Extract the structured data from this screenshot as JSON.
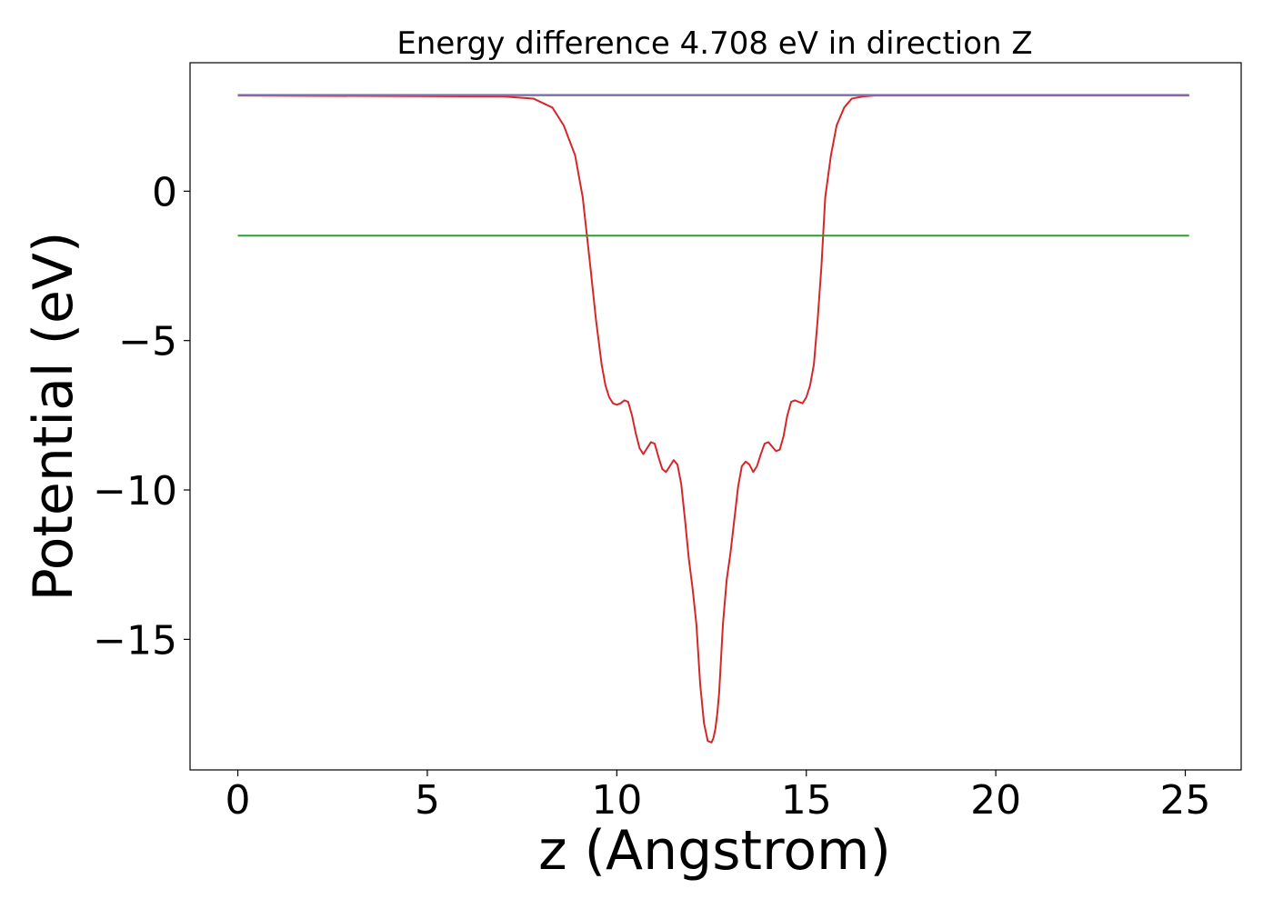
{
  "chart_data": {
    "type": "line",
    "title": "Energy difference 4.708 eV in direction Z",
    "xlabel": "z (Angstrom)",
    "ylabel": "Potential (eV)",
    "xlim": [
      -1.2607,
      26.4748
    ],
    "ylim": [
      -19.37,
      4.3
    ],
    "x_ticks": [
      0,
      5,
      10,
      15,
      20,
      25
    ],
    "x_tick_labels": [
      "0",
      "5",
      "10",
      "15",
      "20",
      "25"
    ],
    "y_ticks": [
      0,
      -5,
      -10,
      -15
    ],
    "y_tick_labels": [
      "0",
      "−5",
      "−10",
      "−15"
    ],
    "grid": false,
    "legend": "none",
    "series": [
      {
        "color": "#d62728",
        "x": [
          0,
          7.0,
          7.8,
          8.3,
          8.6,
          8.9,
          9.1,
          9.3,
          9.45,
          9.6,
          9.7,
          9.8,
          9.9,
          10.0,
          10.1,
          10.2,
          10.3,
          10.4,
          10.5,
          10.6,
          10.7,
          10.8,
          10.9,
          11.0,
          11.1,
          11.2,
          11.3,
          11.4,
          11.5,
          11.6,
          11.7,
          11.8,
          11.9,
          12.0,
          12.1,
          12.2,
          12.3,
          12.4,
          12.5,
          12.55,
          12.6,
          12.65,
          12.7,
          12.8,
          12.9,
          13.0,
          13.1,
          13.2,
          13.3,
          13.4,
          13.5,
          13.6,
          13.7,
          13.8,
          13.9,
          14.0,
          14.1,
          14.2,
          14.3,
          14.4,
          14.5,
          14.6,
          14.7,
          14.8,
          14.9,
          15.0,
          15.1,
          15.2,
          15.3,
          15.4,
          15.5,
          15.65,
          15.8,
          16.0,
          16.2,
          16.5,
          16.8,
          17.3,
          18.0,
          20.0,
          25.1
        ],
        "values": [
          3.2,
          3.17,
          3.1,
          2.8,
          2.2,
          1.2,
          -0.2,
          -2.5,
          -4.3,
          -5.8,
          -6.5,
          -6.9,
          -7.1,
          -7.15,
          -7.1,
          -7.0,
          -7.05,
          -7.5,
          -8.1,
          -8.6,
          -8.8,
          -8.6,
          -8.4,
          -8.45,
          -8.9,
          -9.3,
          -9.4,
          -9.2,
          -9.0,
          -9.15,
          -9.8,
          -11.0,
          -12.3,
          -13.3,
          -14.5,
          -16.5,
          -17.8,
          -18.4,
          -18.45,
          -18.3,
          -18.0,
          -17.5,
          -16.8,
          -14.5,
          -13.0,
          -12.1,
          -11.0,
          -9.9,
          -9.2,
          -9.05,
          -9.15,
          -9.4,
          -9.2,
          -8.8,
          -8.45,
          -8.4,
          -8.55,
          -8.7,
          -8.65,
          -8.2,
          -7.5,
          -7.05,
          -7.0,
          -7.05,
          -7.1,
          -6.9,
          -6.5,
          -5.8,
          -4.3,
          -2.5,
          -0.2,
          1.2,
          2.2,
          2.8,
          3.1,
          3.17,
          3.2,
          3.2,
          3.2,
          3.2,
          3.2
        ]
      },
      {
        "color": "#1f77b4",
        "x": [
          0,
          25.1
        ],
        "values": [
          3.22,
          3.22
        ]
      },
      {
        "color": "#2ca02c",
        "x": [
          0,
          25.1
        ],
        "values": [
          -1.49,
          -1.49
        ]
      },
      {
        "color": "#7f6fb0",
        "x": [
          0,
          7.5,
          17.7,
          25.1
        ],
        "values": [
          3.21,
          3.21,
          3.21,
          3.21
        ]
      }
    ]
  }
}
